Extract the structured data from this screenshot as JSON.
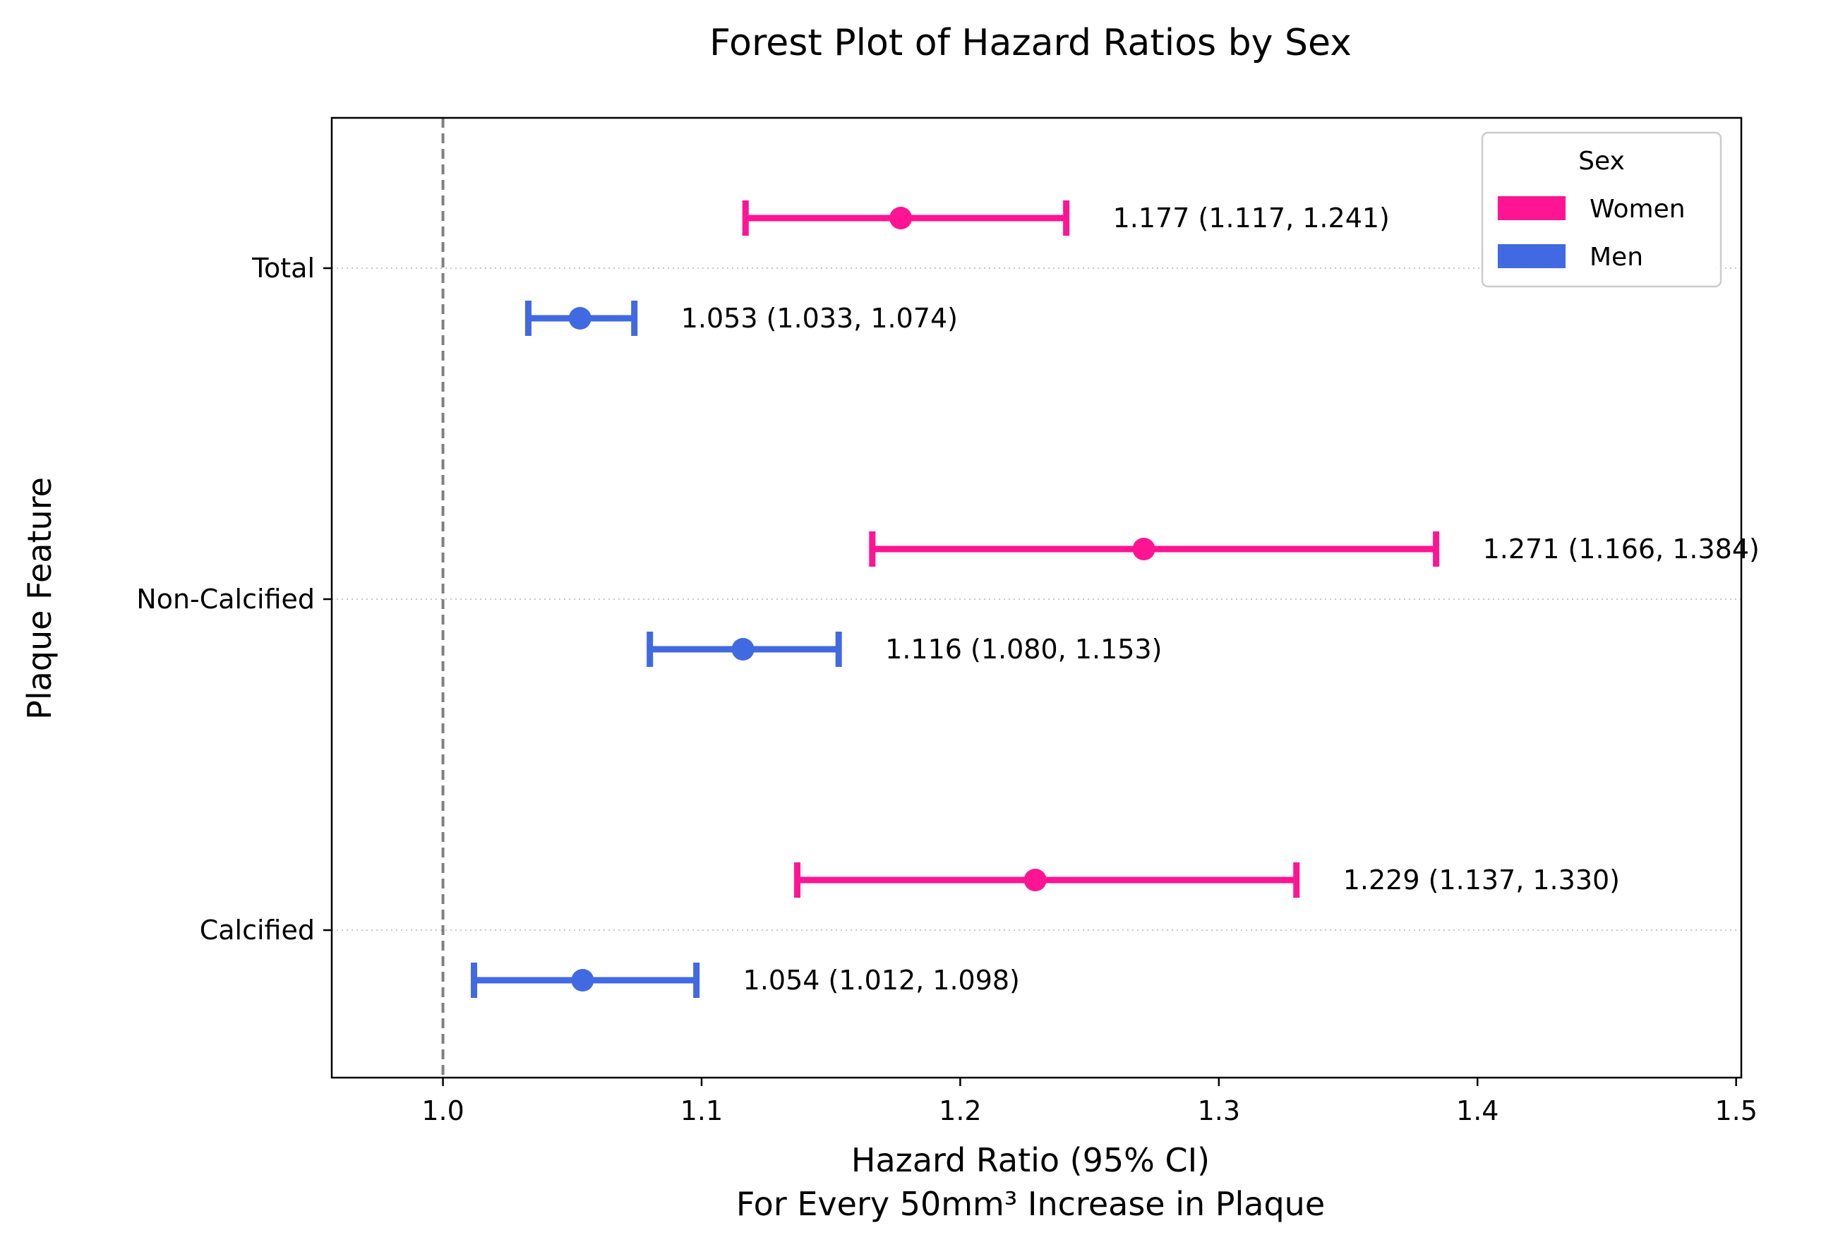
{
  "chart_data": {
    "type": "forest",
    "title": "Forest Plot of Hazard Ratios by Sex",
    "xlabel_line1": "Hazard Ratio (95% CI)",
    "xlabel_line2": "For Every 50mm³ Increase in Plaque",
    "ylabel": "Plaque Feature",
    "xlim": [
      0.957,
      1.502
    ],
    "xticks": [
      1.0,
      1.1,
      1.2,
      1.3,
      1.4,
      1.5
    ],
    "xtick_labels": [
      "1.0",
      "1.1",
      "1.2",
      "1.3",
      "1.4",
      "1.5"
    ],
    "reference_line": 1.0,
    "categories": [
      "Total",
      "Non-Calcified",
      "Calcified"
    ],
    "grid": "dotted horizontal at category ticks",
    "legend": {
      "title": "Sex",
      "placement": "top-right",
      "entries": [
        "Women",
        "Men"
      ]
    },
    "series": [
      {
        "name": "Women",
        "color": "#ff1493",
        "points": [
          {
            "category": "Total",
            "hr": 1.177,
            "lower": 1.117,
            "upper": 1.241,
            "label": "1.177 (1.117, 1.241)"
          },
          {
            "category": "Non-Calcified",
            "hr": 1.271,
            "lower": 1.166,
            "upper": 1.384,
            "label": "1.271 (1.166, 1.384)"
          },
          {
            "category": "Calcified",
            "hr": 1.229,
            "lower": 1.137,
            "upper": 1.33,
            "label": "1.229 (1.137, 1.330)"
          }
        ]
      },
      {
        "name": "Men",
        "color": "#4169e1",
        "points": [
          {
            "category": "Total",
            "hr": 1.053,
            "lower": 1.033,
            "upper": 1.074,
            "label": "1.053 (1.033, 1.074)"
          },
          {
            "category": "Non-Calcified",
            "hr": 1.116,
            "lower": 1.08,
            "upper": 1.153,
            "label": "1.116 (1.080, 1.153)"
          },
          {
            "category": "Calcified",
            "hr": 1.054,
            "lower": 1.012,
            "upper": 1.098,
            "label": "1.054 (1.012, 1.098)"
          }
        ]
      }
    ]
  }
}
